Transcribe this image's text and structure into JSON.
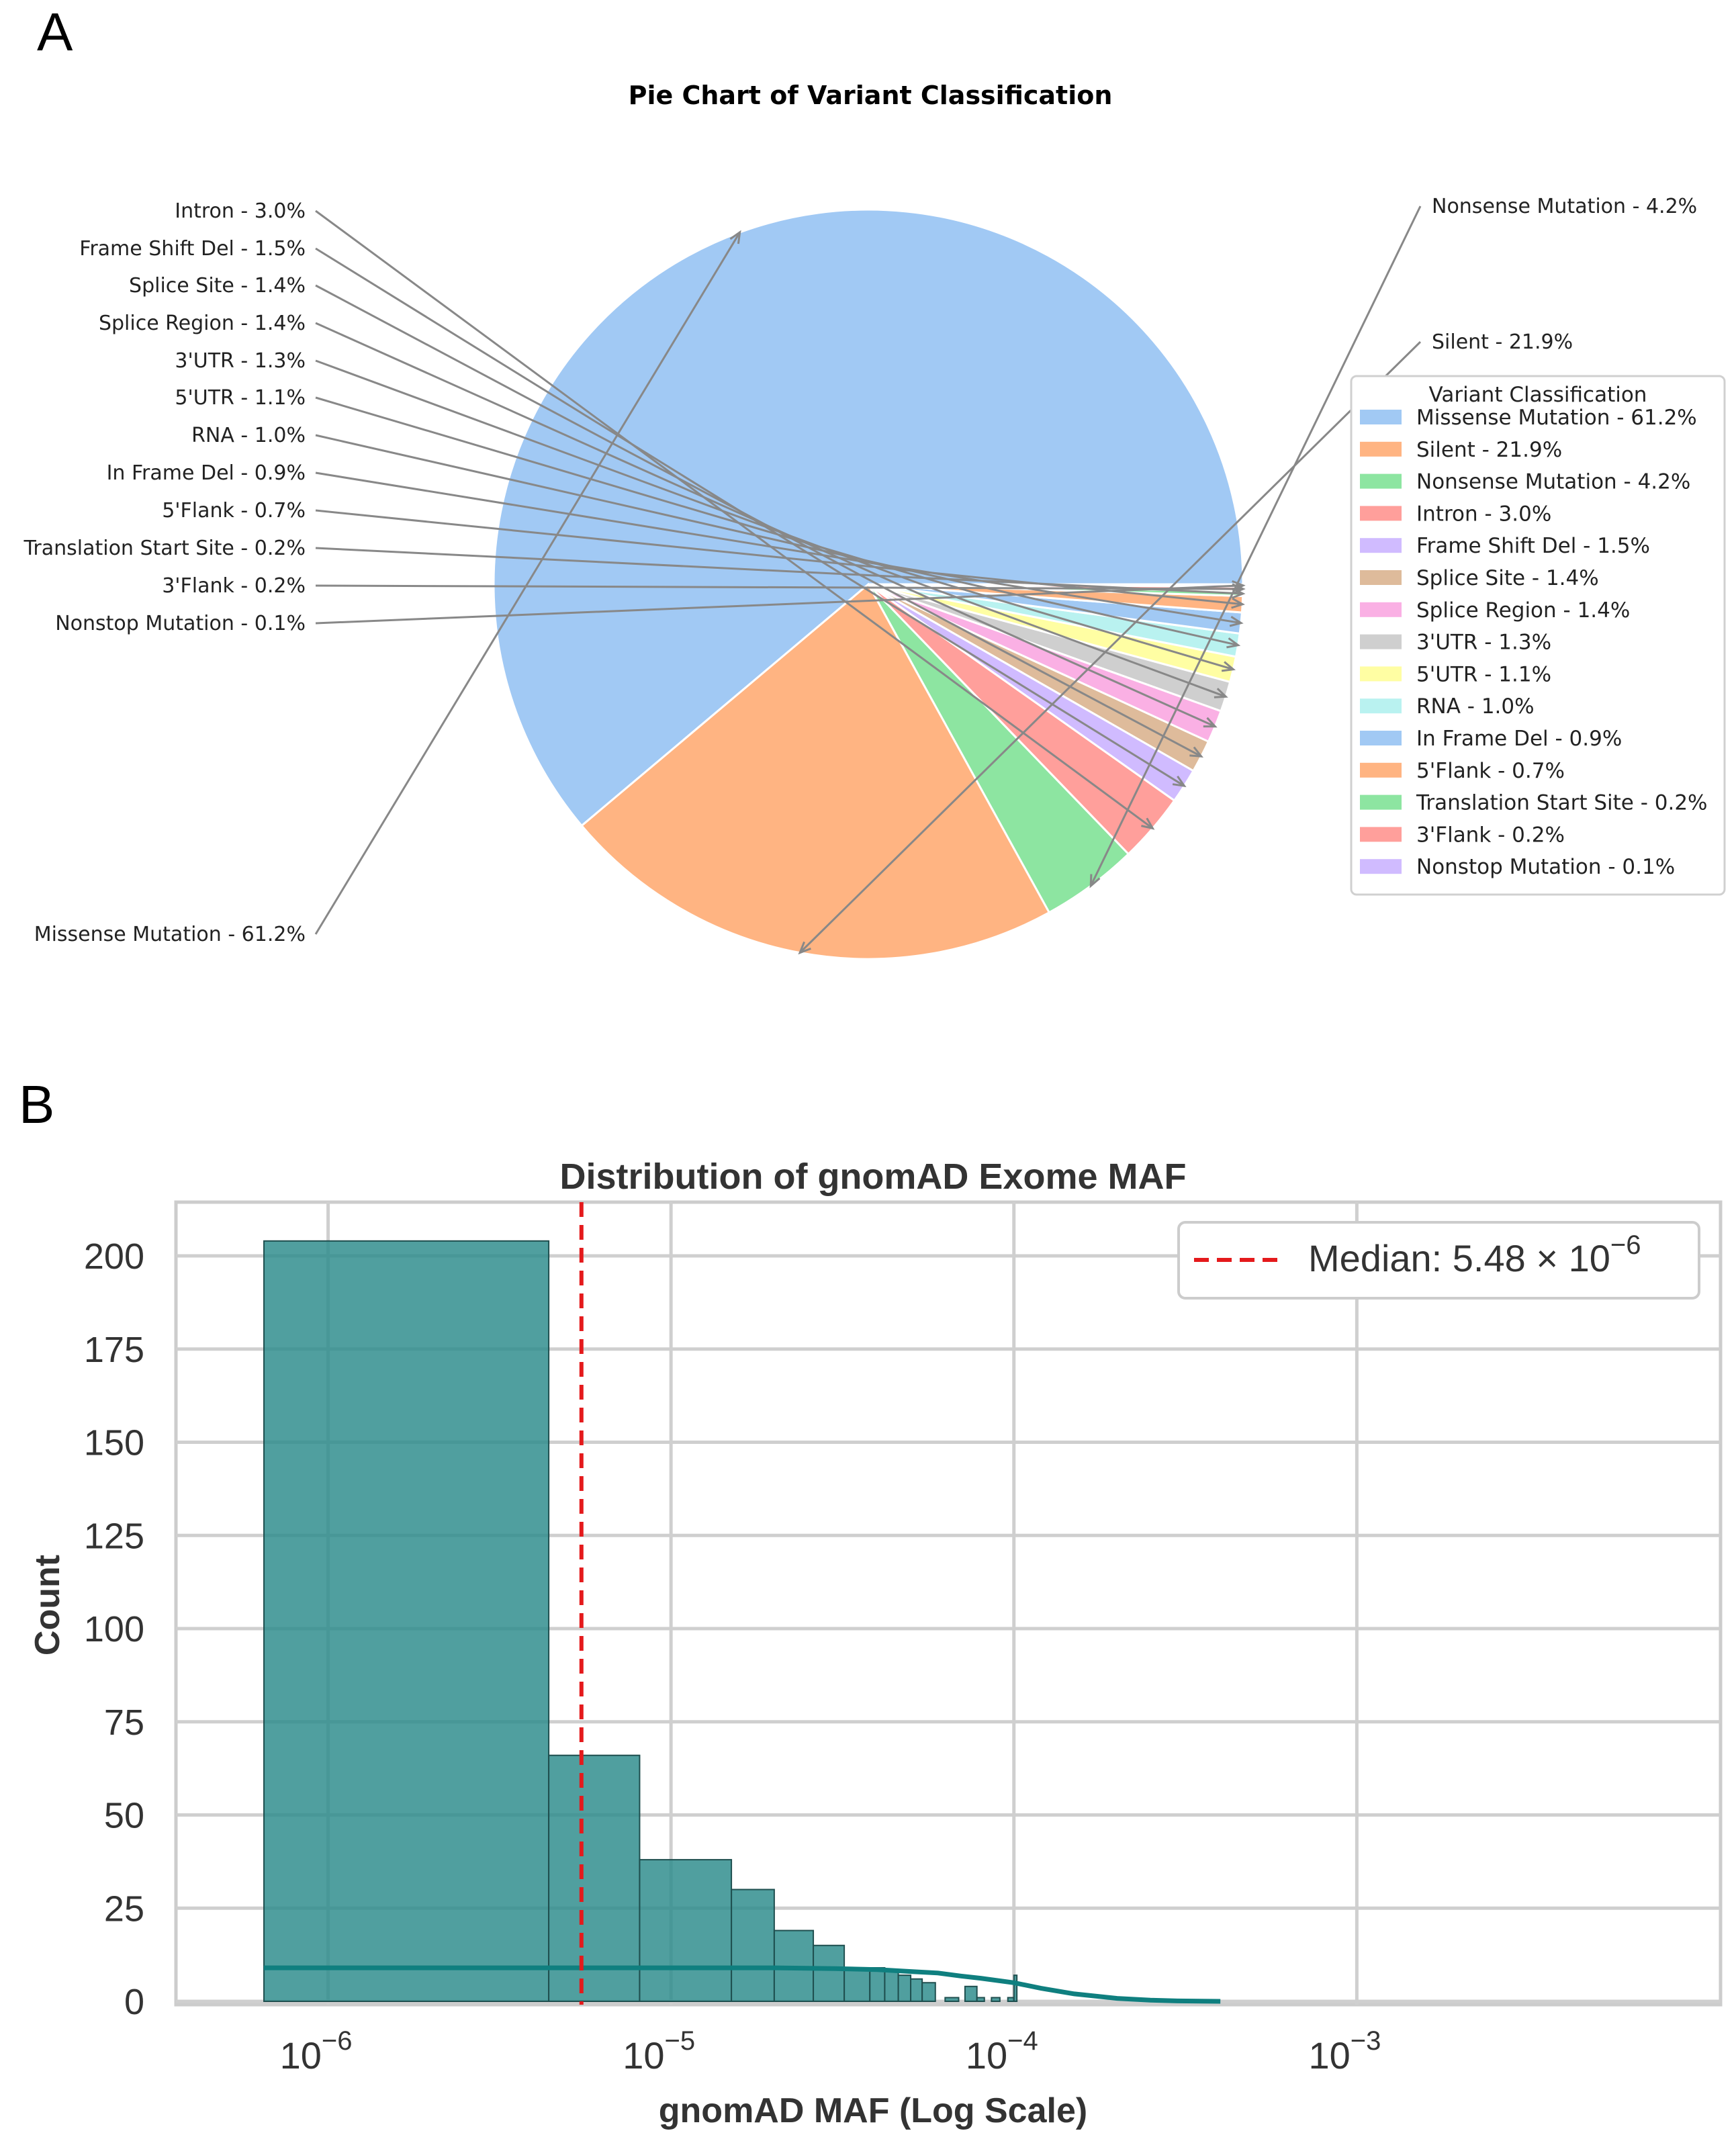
{
  "panels": {
    "a_label": "A",
    "b_label": "B"
  },
  "chart_data": [
    {
      "type": "pie",
      "title": "Pie Chart of Variant Classification",
      "legend_title": "Variant Classification",
      "legend_position": "right",
      "slices": [
        {
          "label": "Missense Mutation - 61.2%",
          "name": "Missense Mutation",
          "value": 61.2,
          "color": "#a1c9f4"
        },
        {
          "label": "Silent - 21.9%",
          "name": "Silent",
          "value": 21.9,
          "color": "#ffb482"
        },
        {
          "label": "Nonsense Mutation - 4.2%",
          "name": "Nonsense Mutation",
          "value": 4.2,
          "color": "#8de5a1"
        },
        {
          "label": "Intron - 3.0%",
          "name": "Intron",
          "value": 3.0,
          "color": "#ff9f9b"
        },
        {
          "label": "Frame Shift Del - 1.5%",
          "name": "Frame Shift Del",
          "value": 1.5,
          "color": "#d0bbff"
        },
        {
          "label": "Splice Site - 1.4%",
          "name": "Splice Site",
          "value": 1.4,
          "color": "#debb9b"
        },
        {
          "label": "Splice Region - 1.4%",
          "name": "Splice Region",
          "value": 1.4,
          "color": "#fab0e4"
        },
        {
          "label": "3'UTR - 1.3%",
          "name": "3'UTR",
          "value": 1.3,
          "color": "#cfcfcf"
        },
        {
          "label": "5'UTR - 1.1%",
          "name": "5'UTR",
          "value": 1.1,
          "color": "#fffea3"
        },
        {
          "label": "RNA - 1.0%",
          "name": "RNA",
          "value": 1.0,
          "color": "#b9f2f0"
        },
        {
          "label": "In Frame Del - 0.9%",
          "name": "In Frame Del",
          "value": 0.9,
          "color": "#a1c9f4"
        },
        {
          "label": "5'Flank - 0.7%",
          "name": "5'Flank",
          "value": 0.7,
          "color": "#ffb482"
        },
        {
          "label": "Translation Start Site - 0.2%",
          "name": "Translation Start Site",
          "value": 0.2,
          "color": "#8de5a1"
        },
        {
          "label": "3'Flank - 0.2%",
          "name": "3'Flank",
          "value": 0.2,
          "color": "#ff9f9b"
        },
        {
          "label": "Nonstop Mutation - 0.1%",
          "name": "Nonstop Mutation",
          "value": 0.1,
          "color": "#d0bbff"
        }
      ]
    },
    {
      "type": "histogram",
      "title": "Distribution of gnomAD Exome MAF",
      "xlabel": "gnomAD MAF (Log Scale)",
      "ylabel": "Count",
      "xscale": "log",
      "xlim": [
        3.6e-07,
        0.0115
      ],
      "ylim": [
        0,
        215
      ],
      "yticks": [
        0,
        25,
        50,
        75,
        100,
        125,
        150,
        175,
        200
      ],
      "xticks": [
        {
          "value": 1e-06,
          "base": "10",
          "exp": "−6"
        },
        {
          "value": 1e-05,
          "base": "10",
          "exp": "−5"
        },
        {
          "value": 0.0001,
          "base": "10",
          "exp": "−4"
        },
        {
          "value": 0.001,
          "base": "10",
          "exp": "−3"
        }
      ],
      "grid": true,
      "bar_color": "#2a8a8a",
      "bins": [
        {
          "x0": 6.5e-07,
          "x1": 4.4e-06,
          "count": 204
        },
        {
          "x0": 4.4e-06,
          "x1": 8.1e-06,
          "count": 66
        },
        {
          "x0": 8.1e-06,
          "x1": 1.5e-05,
          "count": 38
        },
        {
          "x0": 1.5e-05,
          "x1": 2e-05,
          "count": 30
        },
        {
          "x0": 2e-05,
          "x1": 2.6e-05,
          "count": 19
        },
        {
          "x0": 2.6e-05,
          "x1": 3.2e-05,
          "count": 15
        },
        {
          "x0": 3.2e-05,
          "x1": 3.8e-05,
          "count": 9
        },
        {
          "x0": 3.8e-05,
          "x1": 4.2e-05,
          "count": 9
        },
        {
          "x0": 4.2e-05,
          "x1": 4.6e-05,
          "count": 8
        },
        {
          "x0": 4.6e-05,
          "x1": 5e-05,
          "count": 7
        },
        {
          "x0": 5e-05,
          "x1": 5.4e-05,
          "count": 6
        },
        {
          "x0": 5.4e-05,
          "x1": 5.9e-05,
          "count": 5
        },
        {
          "x0": 6.3e-05,
          "x1": 6.9e-05,
          "count": 1
        },
        {
          "x0": 7.2e-05,
          "x1": 7.8e-05,
          "count": 4
        },
        {
          "x0": 7.8e-05,
          "x1": 8.2e-05,
          "count": 1
        },
        {
          "x0": 8.6e-05,
          "x1": 9.1e-05,
          "count": 1
        },
        {
          "x0": 9.6e-05,
          "x1": 0.0001,
          "count": 1
        },
        {
          "x0": 0.0001,
          "x1": 0.000102,
          "count": 7
        }
      ],
      "kde": {
        "color": "#0f7f7f",
        "points": [
          [
            6.5e-07,
            9
          ],
          [
            2e-06,
            9
          ],
          [
            5e-06,
            9
          ],
          [
            1e-05,
            9
          ],
          [
            2e-05,
            9
          ],
          [
            3e-05,
            8.8
          ],
          [
            4e-05,
            8.5
          ],
          [
            5e-05,
            8.0
          ],
          [
            6e-05,
            7.6
          ],
          [
            7e-05,
            6.8
          ],
          [
            8e-05,
            6.2
          ],
          [
            0.0001,
            5.0
          ],
          [
            0.00012,
            3.5
          ],
          [
            0.00015,
            2.0
          ],
          [
            0.0002,
            0.8
          ],
          [
            0.00025,
            0.3
          ],
          [
            0.0003,
            0.1
          ],
          [
            0.0004,
            0
          ]
        ]
      },
      "median": {
        "value": 5.48e-06,
        "legend_prefix": "Median: 5.48 × 10",
        "legend_exp": "−6",
        "color": "#e41a1c"
      }
    }
  ]
}
